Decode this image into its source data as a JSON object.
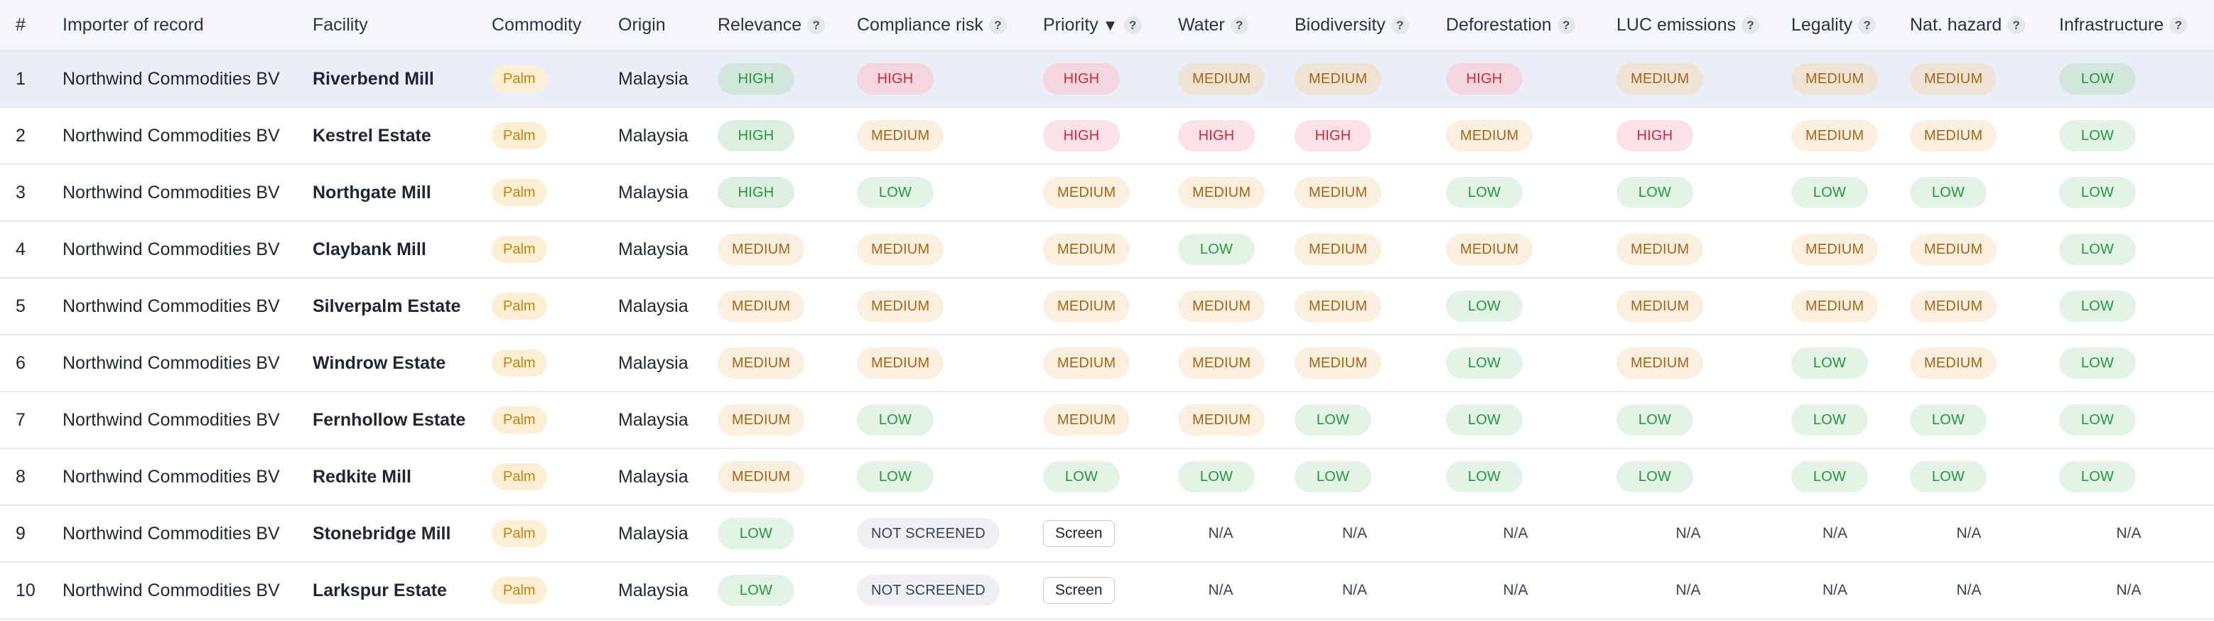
{
  "columns": [
    {
      "label": "#",
      "help": false
    },
    {
      "label": "Importer of record",
      "help": false
    },
    {
      "label": "Facility",
      "help": false
    },
    {
      "label": "Commodity",
      "help": false
    },
    {
      "label": "Origin",
      "help": false
    },
    {
      "label": "Relevance",
      "help": true
    },
    {
      "label": "Compliance risk",
      "help": true
    },
    {
      "label": "Priority",
      "help": true,
      "sort": "▼"
    },
    {
      "label": "Water",
      "help": true
    },
    {
      "label": "Biodiversity",
      "help": true
    },
    {
      "label": "Deforestation",
      "help": true
    },
    {
      "label": "LUC emissions",
      "help": true
    },
    {
      "label": "Legality",
      "help": true
    },
    {
      "label": "Nat. hazard",
      "help": true
    },
    {
      "label": "Infrastructure",
      "help": true
    }
  ],
  "help_glyph": "?",
  "screen_label": "Screen",
  "not_screened_label": "NOT SCREENED",
  "na_label": "N/A",
  "colors": {
    "high": "#d0283c",
    "medium": "#a86414",
    "low": "#23963d",
    "palm": "#c7820f",
    "selected_row": "#e9eef8"
  },
  "rows": [
    {
      "num": "1",
      "importer": "Northwind Commodities BV",
      "facility": "Riverbend Mill",
      "commodity": "Palm",
      "origin": "Malaysia",
      "relevance": "HIGH",
      "compliance": "HIGH",
      "priority": "HIGH",
      "water": "MEDIUM",
      "biodiversity": "MEDIUM",
      "deforestation": "HIGH",
      "luc": "MEDIUM",
      "legality": "MEDIUM",
      "hazard": "MEDIUM",
      "infrastructure": "LOW",
      "selected": true
    },
    {
      "num": "2",
      "importer": "Northwind Commodities BV",
      "facility": "Kestrel Estate",
      "commodity": "Palm",
      "origin": "Malaysia",
      "relevance": "HIGH",
      "compliance": "MEDIUM",
      "priority": "HIGH",
      "water": "HIGH",
      "biodiversity": "HIGH",
      "deforestation": "MEDIUM",
      "luc": "HIGH",
      "legality": "MEDIUM",
      "hazard": "MEDIUM",
      "infrastructure": "LOW"
    },
    {
      "num": "3",
      "importer": "Northwind Commodities BV",
      "facility": "Northgate Mill",
      "commodity": "Palm",
      "origin": "Malaysia",
      "relevance": "HIGH",
      "compliance": "LOW",
      "priority": "MEDIUM",
      "water": "MEDIUM",
      "biodiversity": "MEDIUM",
      "deforestation": "LOW",
      "luc": "LOW",
      "legality": "LOW",
      "hazard": "LOW",
      "infrastructure": "LOW"
    },
    {
      "num": "4",
      "importer": "Northwind Commodities BV",
      "facility": "Claybank Mill",
      "commodity": "Palm",
      "origin": "Malaysia",
      "relevance": "MEDIUM",
      "compliance": "MEDIUM",
      "priority": "MEDIUM",
      "water": "LOW",
      "biodiversity": "MEDIUM",
      "deforestation": "MEDIUM",
      "luc": "MEDIUM",
      "legality": "MEDIUM",
      "hazard": "MEDIUM",
      "infrastructure": "LOW"
    },
    {
      "num": "5",
      "importer": "Northwind Commodities BV",
      "facility": "Silverpalm Estate",
      "commodity": "Palm",
      "origin": "Malaysia",
      "relevance": "MEDIUM",
      "compliance": "MEDIUM",
      "priority": "MEDIUM",
      "water": "MEDIUM",
      "biodiversity": "MEDIUM",
      "deforestation": "LOW",
      "luc": "MEDIUM",
      "legality": "MEDIUM",
      "hazard": "MEDIUM",
      "infrastructure": "LOW"
    },
    {
      "num": "6",
      "importer": "Northwind Commodities BV",
      "facility": "Windrow Estate",
      "commodity": "Palm",
      "origin": "Malaysia",
      "relevance": "MEDIUM",
      "compliance": "MEDIUM",
      "priority": "MEDIUM",
      "water": "MEDIUM",
      "biodiversity": "MEDIUM",
      "deforestation": "LOW",
      "luc": "MEDIUM",
      "legality": "LOW",
      "hazard": "MEDIUM",
      "infrastructure": "LOW"
    },
    {
      "num": "7",
      "importer": "Northwind Commodities BV",
      "facility": "Fernhollow Estate",
      "commodity": "Palm",
      "origin": "Malaysia",
      "relevance": "MEDIUM",
      "compliance": "LOW",
      "priority": "MEDIUM",
      "water": "MEDIUM",
      "biodiversity": "LOW",
      "deforestation": "LOW",
      "luc": "LOW",
      "legality": "LOW",
      "hazard": "LOW",
      "infrastructure": "LOW"
    },
    {
      "num": "8",
      "importer": "Northwind Commodities BV",
      "facility": "Redkite Mill",
      "commodity": "Palm",
      "origin": "Malaysia",
      "relevance": "MEDIUM",
      "compliance": "LOW",
      "priority": "LOW",
      "water": "LOW",
      "biodiversity": "LOW",
      "deforestation": "LOW",
      "luc": "LOW",
      "legality": "LOW",
      "hazard": "LOW",
      "infrastructure": "LOW"
    },
    {
      "num": "9",
      "importer": "Northwind Commodities BV",
      "facility": "Stonebridge Mill",
      "commodity": "Palm",
      "origin": "Malaysia",
      "relevance": "LOW",
      "compliance": "NOT SCREENED",
      "priority": "Screen",
      "water": "N/A",
      "biodiversity": "N/A",
      "deforestation": "N/A",
      "luc": "N/A",
      "legality": "N/A",
      "hazard": "N/A",
      "infrastructure": "N/A"
    },
    {
      "num": "10",
      "importer": "Northwind Commodities BV",
      "facility": "Larkspur Estate",
      "commodity": "Palm",
      "origin": "Malaysia",
      "relevance": "LOW",
      "compliance": "NOT SCREENED",
      "priority": "Screen",
      "water": "N/A",
      "biodiversity": "N/A",
      "deforestation": "N/A",
      "luc": "N/A",
      "legality": "N/A",
      "hazard": "N/A",
      "infrastructure": "N/A"
    }
  ]
}
